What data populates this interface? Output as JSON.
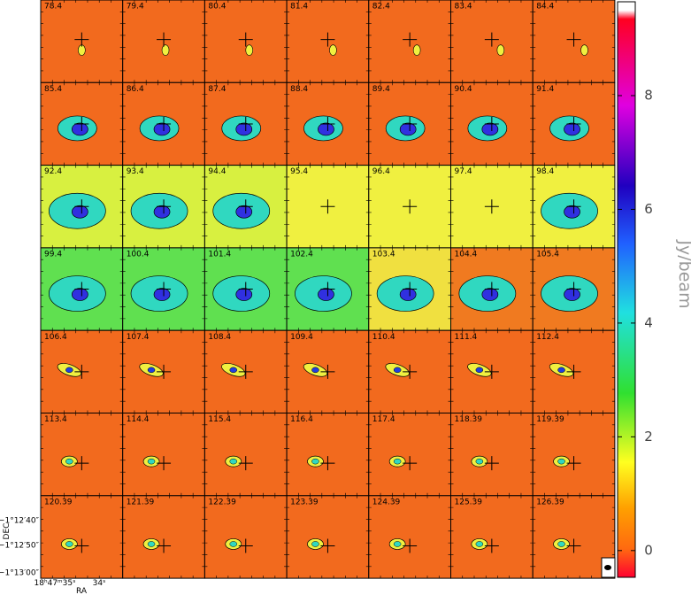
{
  "panels": [
    "78.4",
    "79.4",
    "80.4",
    "81.4",
    "82.4",
    "83.4",
    "84.4",
    "85.4",
    "86.4",
    "87.4",
    "88.4",
    "89.4",
    "90.4",
    "91.4",
    "92.4",
    "93.4",
    "94.4",
    "95.4",
    "96.4",
    "97.4",
    "98.4",
    "99.4",
    "100.4",
    "101.4",
    "102.4",
    "103.4",
    "104.4",
    "105.4",
    "106.4",
    "107.4",
    "108.4",
    "109.4",
    "110.4",
    "111.4",
    "112.4",
    "113.4",
    "114.4",
    "115.4",
    "116.4",
    "117.4",
    "118.39",
    "119.39",
    "120.39",
    "121.39",
    "122.39",
    "123.39",
    "124.39",
    "125.39",
    "126.39"
  ],
  "colorbar": {
    "label": "Jy/beam",
    "lim": [
      -0.47,
      9.65
    ],
    "ticks": [
      0,
      2,
      4,
      6,
      8
    ]
  },
  "axes": {
    "dec_label": "DEC",
    "ra_label": "RA",
    "dec_ticks": [
      "−1°12′40″",
      "−1°12′50″",
      "−1°13′00″"
    ],
    "ra_ticks": [
      "18ʰ47ᵐ35ˢ",
      "34ˢ"
    ]
  }
}
